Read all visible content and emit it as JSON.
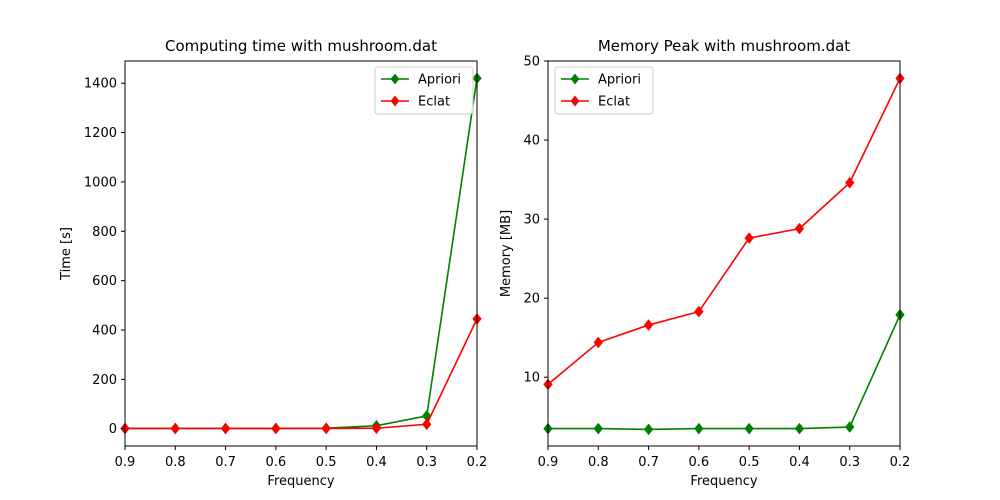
{
  "chart_data": [
    {
      "type": "line",
      "title": "Computing time with mushroom.dat",
      "xlabel": "Frequency",
      "ylabel": "Time [s]",
      "x": [
        0.9,
        0.8,
        0.7,
        0.6,
        0.5,
        0.4,
        0.3,
        0.2
      ],
      "xlim": [
        0.9,
        0.2
      ],
      "ylim": [
        -70,
        1490
      ],
      "xticks": [
        "0.9",
        "0.8",
        "0.7",
        "0.6",
        "0.5",
        "0.4",
        "0.3",
        "0.2"
      ],
      "yticks": [
        0,
        200,
        400,
        600,
        800,
        1000,
        1200,
        1400
      ],
      "ytick_labels": [
        "0",
        "200",
        "400",
        "600",
        "800",
        "1000",
        "1200",
        "1400"
      ],
      "legend": "top-right",
      "grid": false,
      "series": [
        {
          "name": "Apriori",
          "color": "#008000",
          "marker": "diamond",
          "values": [
            1,
            1,
            1,
            1,
            2,
            12,
            52,
            1420
          ]
        },
        {
          "name": "Eclat",
          "color": "#ff0000",
          "marker": "diamond",
          "values": [
            1,
            1,
            1,
            1,
            1,
            2,
            18,
            445
          ]
        }
      ]
    },
    {
      "type": "line",
      "title": "Memory Peak with mushroom.dat",
      "xlabel": "Frequency",
      "ylabel": "Memory [MB]",
      "x": [
        0.9,
        0.8,
        0.7,
        0.6,
        0.5,
        0.4,
        0.3,
        0.2
      ],
      "xlim": [
        0.9,
        0.2
      ],
      "ylim": [
        1.3,
        50
      ],
      "xticks": [
        "0.9",
        "0.8",
        "0.7",
        "0.6",
        "0.5",
        "0.4",
        "0.3",
        "0.2"
      ],
      "yticks": [
        10,
        20,
        30,
        40,
        50
      ],
      "ytick_labels": [
        "10",
        "20",
        "30",
        "40",
        "50"
      ],
      "legend": "top-left",
      "grid": false,
      "series": [
        {
          "name": "Apriori",
          "color": "#008000",
          "marker": "diamond",
          "values": [
            3.5,
            3.5,
            3.4,
            3.5,
            3.5,
            3.5,
            3.7,
            17.9
          ]
        },
        {
          "name": "Eclat",
          "color": "#ff0000",
          "marker": "diamond",
          "values": [
            9.1,
            14.4,
            16.6,
            18.3,
            27.6,
            28.8,
            34.6,
            47.8
          ]
        }
      ]
    }
  ]
}
